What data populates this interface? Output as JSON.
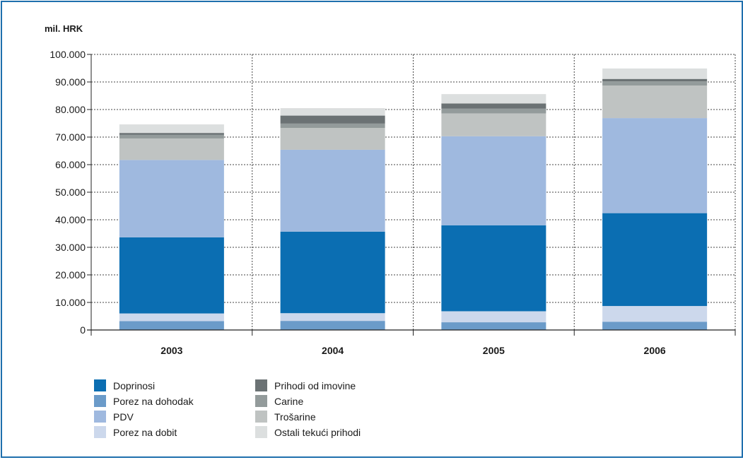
{
  "chart_data": {
    "type": "bar",
    "stacked": true,
    "ylabel": "mil. HRK",
    "ylim": [
      0,
      100000
    ],
    "yticks": [
      "0",
      "10.000",
      "20.000",
      "30.000",
      "40.000",
      "50.000",
      "60.000",
      "70.000",
      "80.000",
      "90.000",
      "100.000"
    ],
    "grid": true,
    "legend_position": "bottom-left",
    "categories": [
      "2003",
      "2004",
      "2005",
      "2006"
    ],
    "series": [
      {
        "name": "Porez na dohodak",
        "color": "#6b9bc9",
        "values": [
          3200,
          3300,
          2800,
          3000
        ]
      },
      {
        "name": "Porez na dobit",
        "color": "#ccd8ec",
        "values": [
          2800,
          2800,
          4000,
          5700
        ]
      },
      {
        "name": "Doprinosi",
        "color": "#0b6eb2",
        "values": [
          27600,
          29600,
          31200,
          33700
        ]
      },
      {
        "name": "PDV",
        "color": "#9fb9df",
        "values": [
          28100,
          29700,
          32300,
          34500
        ]
      },
      {
        "name": "Trošarine",
        "color": "#bfc3c2",
        "values": [
          7800,
          7900,
          8300,
          11800
        ]
      },
      {
        "name": "Carine",
        "color": "#939b9b",
        "values": [
          1300,
          1600,
          1700,
          1500
        ]
      },
      {
        "name": "Prihodi od imovine",
        "color": "#6b7274",
        "values": [
          700,
          2900,
          1900,
          900
        ]
      },
      {
        "name": "Ostali tekući prihodi",
        "color": "#dcdfdf",
        "values": [
          3100,
          2700,
          3400,
          3800
        ]
      }
    ],
    "legend_order": [
      "Doprinosi",
      "Porez na dohodak",
      "PDV",
      "Porez na dobit",
      "Prihodi od imovine",
      "Carine",
      "Trošarine",
      "Ostali tekući prihodi"
    ]
  }
}
